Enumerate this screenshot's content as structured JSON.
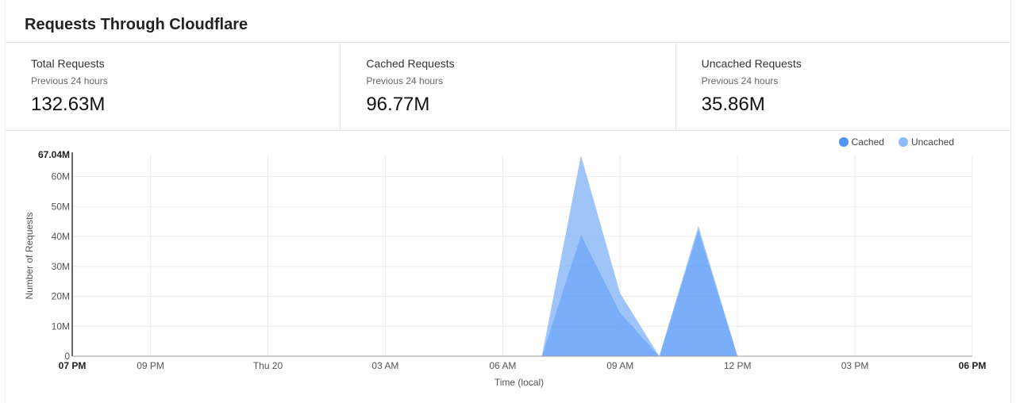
{
  "title": "Requests Through Cloudflare",
  "stats": [
    {
      "label": "Total Requests",
      "sub": "Previous 24 hours",
      "value": "132.63M"
    },
    {
      "label": "Cached Requests",
      "sub": "Previous 24 hours",
      "value": "96.77M"
    },
    {
      "label": "Uncached Requests",
      "sub": "Previous 24 hours",
      "value": "35.86M"
    }
  ],
  "legend": {
    "cached_label": "Cached",
    "uncached_label": "Uncached",
    "cached_color": "#4f93f5",
    "uncached_color": "#8dbaf7"
  },
  "chart_data": {
    "type": "area",
    "stacked": true,
    "xlabel": "Time (local)",
    "ylabel": "Number of Requests",
    "ylim": [
      0,
      67.04
    ],
    "y_unit": "M",
    "y_max_label": "67.04M",
    "y_ticks": [
      "0",
      "10M",
      "20M",
      "30M",
      "40M",
      "50M",
      "60M"
    ],
    "y_tick_values": [
      0,
      10,
      20,
      30,
      40,
      50,
      60
    ],
    "x_ticks": [
      {
        "label": "07 PM",
        "hour": 0,
        "bold": true
      },
      {
        "label": "09 PM",
        "hour": 2,
        "bold": false
      },
      {
        "label": "Thu 20",
        "hour": 5,
        "bold": false
      },
      {
        "label": "03 AM",
        "hour": 8,
        "bold": false
      },
      {
        "label": "06 AM",
        "hour": 11,
        "bold": false
      },
      {
        "label": "09 AM",
        "hour": 14,
        "bold": false
      },
      {
        "label": "12 PM",
        "hour": 17,
        "bold": false
      },
      {
        "label": "03 PM",
        "hour": 20,
        "bold": false
      },
      {
        "label": "06 PM",
        "hour": 23,
        "bold": true
      }
    ],
    "x_hours": [
      12,
      13,
      14,
      15,
      16,
      17
    ],
    "series": [
      {
        "name": "Cached",
        "values": [
          0,
          40.5,
          14.5,
          0,
          42,
          0
        ]
      },
      {
        "name": "Uncached",
        "values": [
          0,
          26.5,
          6.5,
          0,
          1.5,
          0
        ]
      }
    ]
  }
}
